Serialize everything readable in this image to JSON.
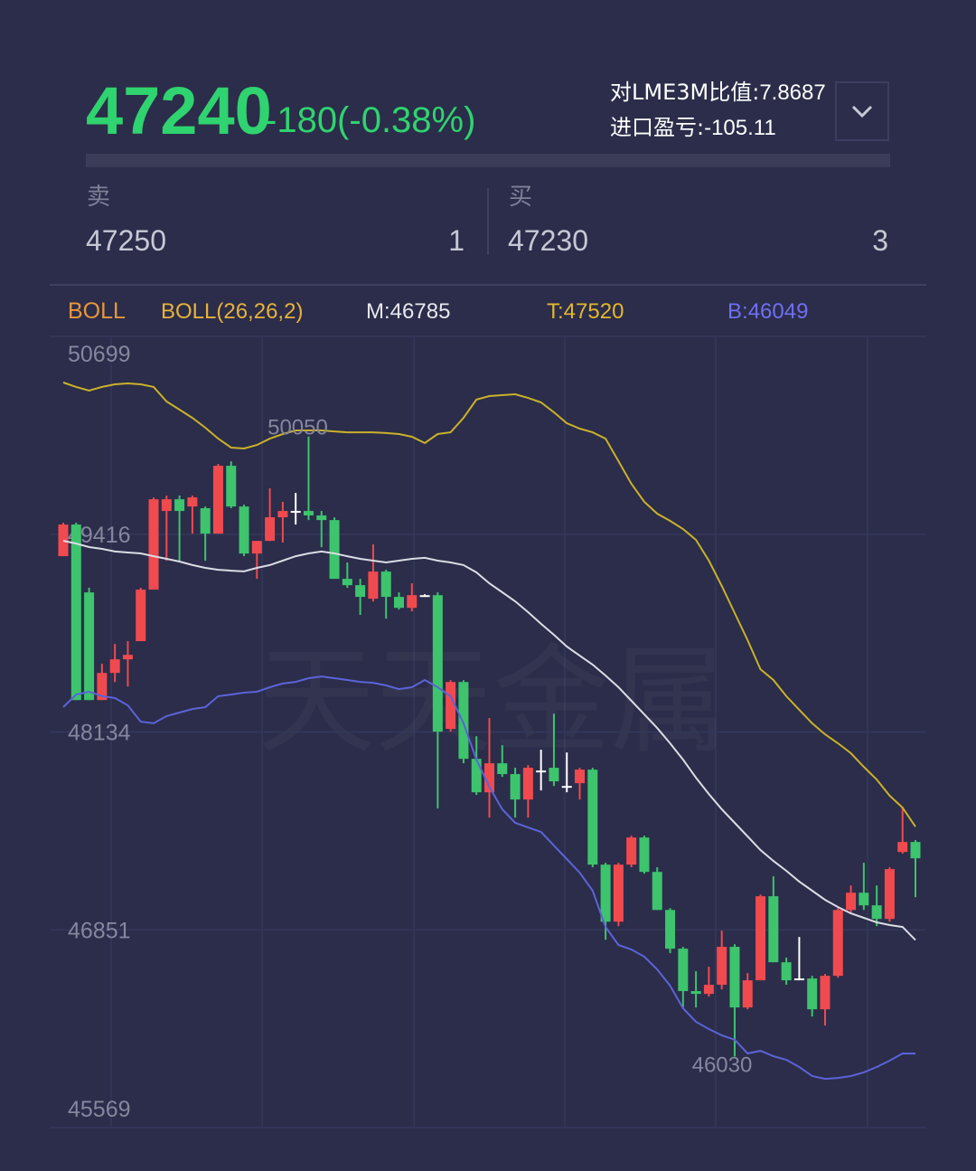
{
  "header": {
    "price": 47240,
    "change": "-180(-0.38%)",
    "ratio_label": "对LME3M比值:",
    "ratio": 7.8687,
    "pnl_label": "进口盈亏:",
    "pnl": -105.11
  },
  "quote": {
    "sell_label": "卖",
    "sell_price": 47250,
    "sell_qty": 1,
    "buy_label": "买",
    "buy_price": 47230,
    "buy_qty": 3
  },
  "indicator": {
    "name": "BOLL",
    "params": "BOLL(26,26,2)",
    "items": [
      {
        "label": "M:",
        "value": 46785,
        "color": "#e8e8ee"
      },
      {
        "label": "T:",
        "value": 47520,
        "color": "#e3b82c"
      },
      {
        "label": "B:",
        "value": 46049,
        "color": "#6f6ff2"
      }
    ]
  },
  "chart_data": {
    "type": "candlestick",
    "watermark": "天天金属",
    "ylim": [
      45569,
      50699
    ],
    "yticks": [
      50699,
      49416,
      48134,
      46851,
      45569
    ],
    "grid": true,
    "up_color": "#f04a4f",
    "down_color": "#3dc46d",
    "flat_color": "#ffffff",
    "max_label": 50050,
    "min_label": 46030,
    "open": [
      49274,
      49479,
      49039,
      48341,
      48517,
      48605,
      48723,
      49057,
      49567,
      49643,
      49596,
      49585,
      49420,
      49860,
      49596,
      49291,
      49373,
      49526,
      49567,
      49567,
      49538,
      49508,
      49127,
      49086,
      48998,
      49174,
      49010,
      48939,
      49021,
      49021,
      48154,
      48458,
      47960,
      47743,
      47931,
      47861,
      47696,
      47884,
      47902,
      47784,
      47802,
      47890,
      47274,
      46904,
      47274,
      47450,
      47227,
      46980,
      46729,
      46454,
      46436,
      46495,
      46741,
      46348,
      46524,
      47069,
      46641,
      46536,
      46536,
      46336,
      46553,
      46980,
      47092,
      47010,
      46922,
      47356,
      47421
    ],
    "close": [
      49479,
      48341,
      48341,
      48517,
      48605,
      48634,
      49057,
      49643,
      49643,
      49567,
      49655,
      49420,
      49860,
      49596,
      49291,
      49373,
      49526,
      49567,
      49567,
      49538,
      49508,
      49127,
      49086,
      49010,
      49174,
      49010,
      48939,
      49021,
      49021,
      48136,
      48458,
      47960,
      47743,
      47931,
      47861,
      47696,
      47902,
      47884,
      47814,
      47784,
      47890,
      47274,
      46904,
      47274,
      47450,
      47227,
      46980,
      46729,
      46454,
      46436,
      46495,
      46741,
      46348,
      46524,
      47069,
      46641,
      46524,
      46536,
      46336,
      46553,
      46980,
      47092,
      47010,
      46922,
      47245,
      47421,
      47315
    ],
    "high": [
      49491,
      49491,
      49069,
      48576,
      48705,
      48723,
      49069,
      49655,
      49667,
      49667,
      49667,
      49596,
      49872,
      49889,
      49608,
      49373,
      49714,
      49626,
      49684,
      50050,
      49567,
      49526,
      49233,
      49127,
      49350,
      49186,
      49039,
      49098,
      49027,
      49039,
      48470,
      48470,
      48107,
      48224,
      48048,
      47902,
      47919,
      48019,
      48253,
      48001,
      47902,
      47902,
      47286,
      47286,
      47462,
      47462,
      47257,
      46992,
      46741,
      46583,
      46612,
      46846,
      46758,
      46571,
      47080,
      47198,
      46671,
      46805,
      46553,
      46565,
      46992,
      47139,
      47286,
      47139,
      47257,
      47649,
      47433
    ],
    "low": [
      49274,
      48341,
      48341,
      48341,
      48458,
      48429,
      48723,
      49057,
      49244,
      49244,
      49420,
      49244,
      49420,
      49585,
      49274,
      49127,
      49373,
      49362,
      49479,
      49508,
      49332,
      49127,
      49069,
      48893,
      48980,
      48869,
      48928,
      48916,
      49010,
      47638,
      48136,
      47931,
      47726,
      47579,
      47843,
      47579,
      47579,
      47755,
      47784,
      47743,
      47696,
      47257,
      46787,
      46875,
      47257,
      47215,
      46980,
      46700,
      46348,
      46348,
      46418,
      46465,
      46030,
      46336,
      46524,
      46641,
      46495,
      46524,
      46289,
      46231,
      46541,
      46963,
      46980,
      46875,
      46904,
      47345,
      47063
    ],
    "series": [
      {
        "color": "#c9b22a",
        "values": [
          50400,
          50371,
          50347,
          50371,
          50388,
          50394,
          50388,
          50371,
          50277,
          50224,
          50171,
          50107,
          50036,
          49978,
          49972,
          49995,
          50036,
          50066,
          50089,
          50089,
          50089,
          50083,
          50077,
          50077,
          50077,
          50072,
          50066,
          50048,
          50007,
          50066,
          50077,
          50171,
          50289,
          50312,
          50318,
          50324,
          50300,
          50271,
          50207,
          50136,
          50101,
          50077,
          50036,
          49890,
          49743,
          49626,
          49550,
          49503,
          49450,
          49380,
          49245,
          49081,
          48905,
          48729,
          48541,
          48471,
          48366,
          48278,
          48190,
          48119,
          48061,
          47996,
          47908,
          47826,
          47721,
          47644,
          47520
        ]
      },
      {
        "color": "#dcdce4",
        "values": [
          49374,
          49356,
          49333,
          49321,
          49304,
          49298,
          49292,
          49274,
          49257,
          49239,
          49216,
          49198,
          49186,
          49180,
          49175,
          49198,
          49216,
          49245,
          49274,
          49292,
          49304,
          49292,
          49274,
          49257,
          49245,
          49233,
          49245,
          49257,
          49263,
          49245,
          49233,
          49216,
          49169,
          49098,
          49040,
          48981,
          48911,
          48835,
          48764,
          48688,
          48629,
          48571,
          48500,
          48424,
          48336,
          48248,
          48160,
          48061,
          47955,
          47838,
          47732,
          47633,
          47545,
          47457,
          47369,
          47298,
          47234,
          47164,
          47105,
          47046,
          46999,
          46958,
          46929,
          46900,
          46882,
          46870,
          46785
        ]
      },
      {
        "color": "#5c63d8",
        "values": [
          48295,
          48377,
          48395,
          48366,
          48354,
          48307,
          48201,
          48190,
          48237,
          48260,
          48283,
          48295,
          48366,
          48377,
          48389,
          48395,
          48424,
          48448,
          48459,
          48483,
          48494,
          48483,
          48471,
          48459,
          48453,
          48436,
          48412,
          48424,
          48471,
          48424,
          48366,
          48190,
          47955,
          47779,
          47633,
          47545,
          47515,
          47486,
          47398,
          47310,
          47222,
          47105,
          46870,
          46753,
          46724,
          46677,
          46595,
          46489,
          46343,
          46255,
          46208,
          46167,
          46138,
          46050,
          46067,
          46032,
          46009,
          45962,
          45903,
          45885,
          45891,
          45903,
          45927,
          45962,
          46003,
          46050,
          46049
        ]
      }
    ]
  }
}
